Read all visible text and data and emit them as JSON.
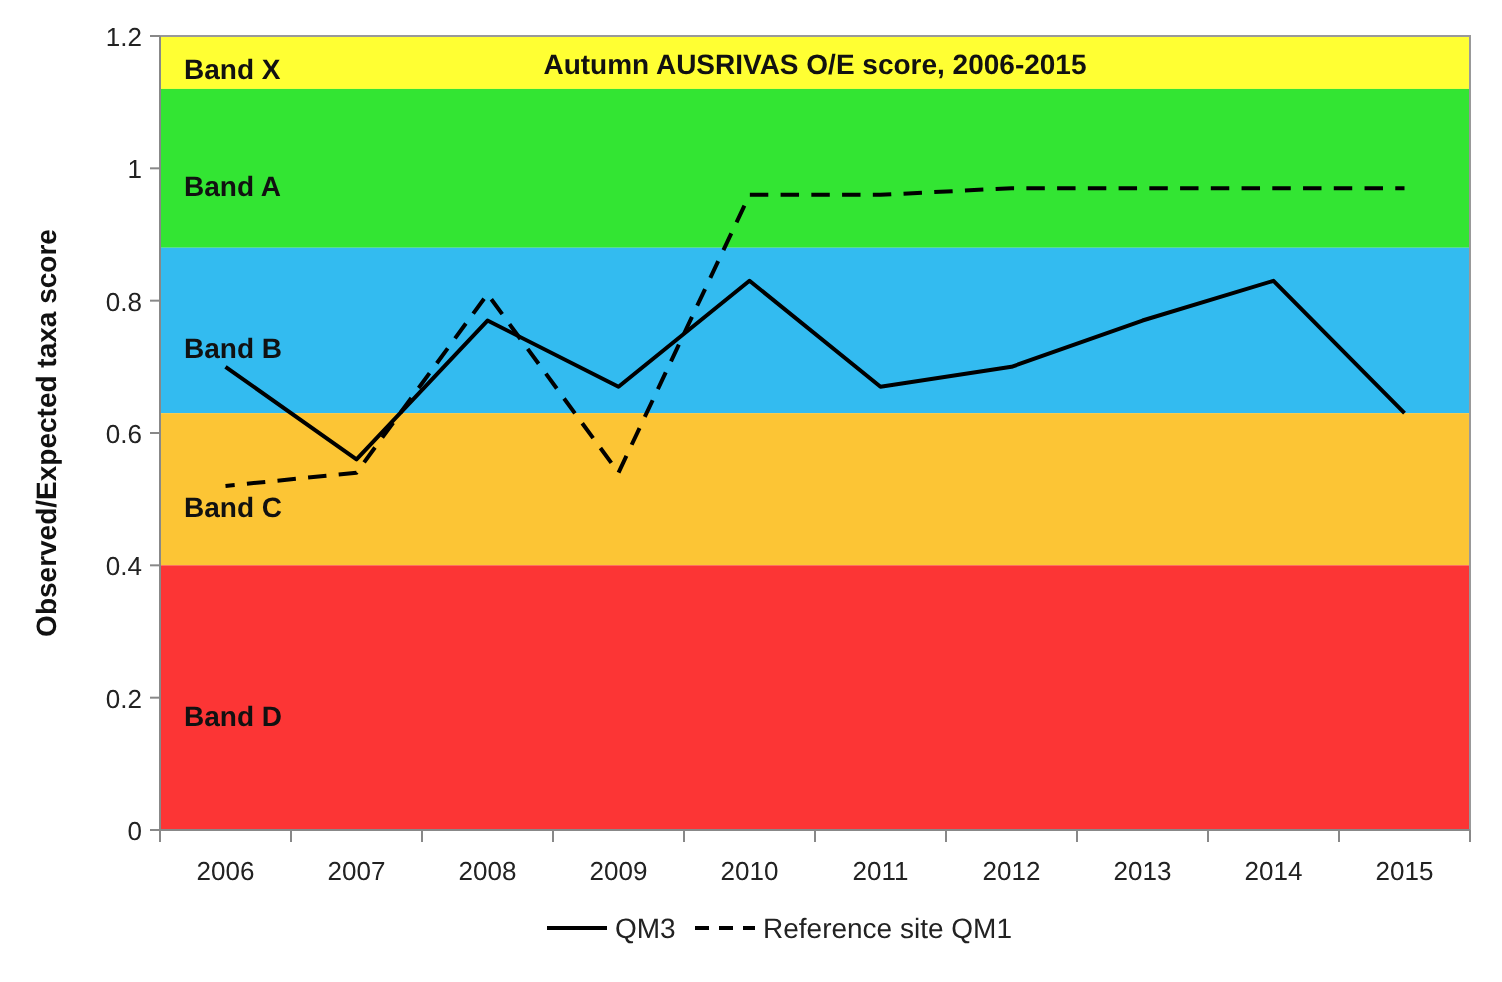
{
  "chart_data": {
    "type": "line",
    "title": "Autumn AUSRIVAS O/E score, 2006-2015",
    "ylabel": "Observed/Expected taxa score",
    "categories": [
      "2006",
      "2007",
      "2008",
      "2009",
      "2010",
      "2011",
      "2012",
      "2013",
      "2014",
      "2015"
    ],
    "series": [
      {
        "name": "QM3",
        "color": "#000000",
        "line_style": "solid",
        "values": [
          0.7,
          0.56,
          0.77,
          0.67,
          0.83,
          0.67,
          0.7,
          0.77,
          0.83,
          0.63
        ]
      },
      {
        "name": "Reference site QM1",
        "color": "#000000",
        "line_style": "dashed",
        "values": [
          0.52,
          0.54,
          0.81,
          0.54,
          0.96,
          0.96,
          0.97,
          0.97,
          0.97,
          0.97
        ]
      }
    ],
    "ylim": [
      0,
      1.2
    ],
    "yticks": [
      0,
      0.2,
      0.4,
      0.6,
      0.8,
      1,
      1.2
    ],
    "grid": false,
    "legend": "bottom",
    "bands": [
      {
        "axis": "y",
        "from": 1.12,
        "to": 1.2,
        "label": "Band X",
        "color": "#ffff33"
      },
      {
        "axis": "y",
        "from": 0.88,
        "to": 1.12,
        "label": "Band A",
        "color": "#33e533"
      },
      {
        "axis": "y",
        "from": 0.63,
        "to": 0.88,
        "label": "Band B",
        "color": "#33bbf0"
      },
      {
        "axis": "y",
        "from": 0.4,
        "to": 0.63,
        "label": "Band C",
        "color": "#fcc535"
      },
      {
        "axis": "y",
        "from": 0,
        "to": 0.4,
        "label": "Band D",
        "color": "#fc3535"
      }
    ]
  }
}
